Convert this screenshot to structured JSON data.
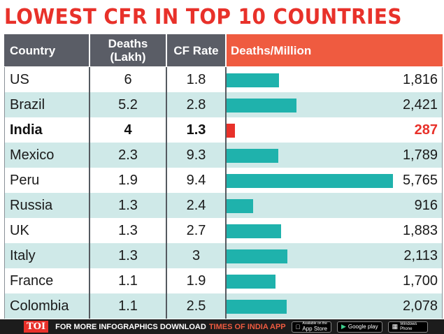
{
  "title": "LOWEST CFR IN TOP 10 COUNTRIES",
  "headers": {
    "country": "Country",
    "deaths": "Deaths (Lakh)",
    "cfr": "CF Rate",
    "dpm": "Deaths/Million"
  },
  "footer": {
    "logo": "TOI",
    "text": "FOR MORE  INFOGRAPHICS DOWNLOAD",
    "brand": "TIMES OF INDIA  APP",
    "app_store_small": "Available on the",
    "app_store": "App Store",
    "google_play": "Google play",
    "windows_phone": "Windows Phone"
  },
  "colors": {
    "title": "#e8312a",
    "header_dark": "#5a5d66",
    "header_accent": "#ef5b40",
    "bar": "#1fb2ac",
    "highlight": "#e8312a",
    "row_tint": "#cfe9e8"
  },
  "chart_data": {
    "type": "table",
    "title": "LOWEST CFR IN TOP 10 COUNTRIES",
    "columns": [
      "Country",
      "Deaths (Lakh)",
      "CF Rate",
      "Deaths/Million"
    ],
    "bar_column": "Deaths/Million",
    "bar_max": 5765,
    "highlight_row": "India",
    "rows": [
      {
        "country": "US",
        "deaths": "6",
        "cfr": "1.8",
        "dpm": 1816,
        "dpm_label": "1,816"
      },
      {
        "country": "Brazil",
        "deaths": "5.2",
        "cfr": "2.8",
        "dpm": 2421,
        "dpm_label": "2,421"
      },
      {
        "country": "India",
        "deaths": "4",
        "cfr": "1.3",
        "dpm": 287,
        "dpm_label": "287"
      },
      {
        "country": "Mexico",
        "deaths": "2.3",
        "cfr": "9.3",
        "dpm": 1789,
        "dpm_label": "1,789"
      },
      {
        "country": "Peru",
        "deaths": "1.9",
        "cfr": "9.4",
        "dpm": 5765,
        "dpm_label": "5,765"
      },
      {
        "country": "Russia",
        "deaths": "1.3",
        "cfr": "2.4",
        "dpm": 916,
        "dpm_label": "916"
      },
      {
        "country": "UK",
        "deaths": "1.3",
        "cfr": "2.7",
        "dpm": 1883,
        "dpm_label": "1,883"
      },
      {
        "country": "Italy",
        "deaths": "1.3",
        "cfr": "3",
        "dpm": 2113,
        "dpm_label": "2,113"
      },
      {
        "country": "France",
        "deaths": "1.1",
        "cfr": "1.9",
        "dpm": 1700,
        "dpm_label": "1,700"
      },
      {
        "country": "Colombia",
        "deaths": "1.1",
        "cfr": "2.5",
        "dpm": 2078,
        "dpm_label": "2,078"
      }
    ]
  }
}
